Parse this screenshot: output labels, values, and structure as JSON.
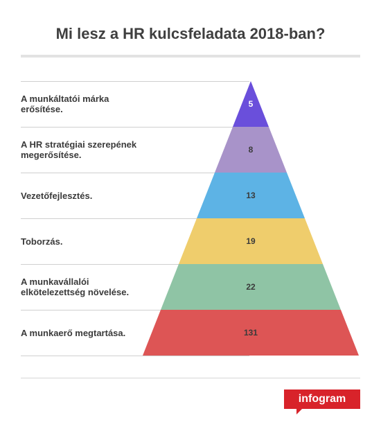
{
  "chart_data": {
    "type": "pyramid",
    "title": "Mi lesz a HR kulcsfeladata 2018-ban?",
    "levels": [
      {
        "label": "A munkáltatói márka erősítése.",
        "value": 5,
        "color": "#6a4fdb"
      },
      {
        "label": "A HR stratégiai szerepének megerősítése.",
        "value": 8,
        "color": "#a893c9"
      },
      {
        "label": "Vezetőfejlesztés.",
        "value": 13,
        "color": "#5db3e5"
      },
      {
        "label": "Toborzás.",
        "value": 19,
        "color": "#efcd6c"
      },
      {
        "label": "A munkavállalói elkötelezettség növelése.",
        "value": 22,
        "color": "#8fc4a5"
      },
      {
        "label": "A munkaerő megtartása.",
        "value": 131,
        "color": "#dd5555"
      }
    ]
  },
  "labels_wrapped": [
    [
      "A munkáltatói márka",
      "erősítése."
    ],
    [
      "A HR stratégiai szerepének",
      "megerősítése."
    ],
    [
      "Vezetőfejlesztés."
    ],
    [
      "Toborzás."
    ],
    [
      "A munkavállalói",
      "elkötelezettség növelése."
    ],
    [
      "A munkaerő megtartása."
    ]
  ],
  "brand": {
    "text": "infogram",
    "color": "#d8232a"
  }
}
